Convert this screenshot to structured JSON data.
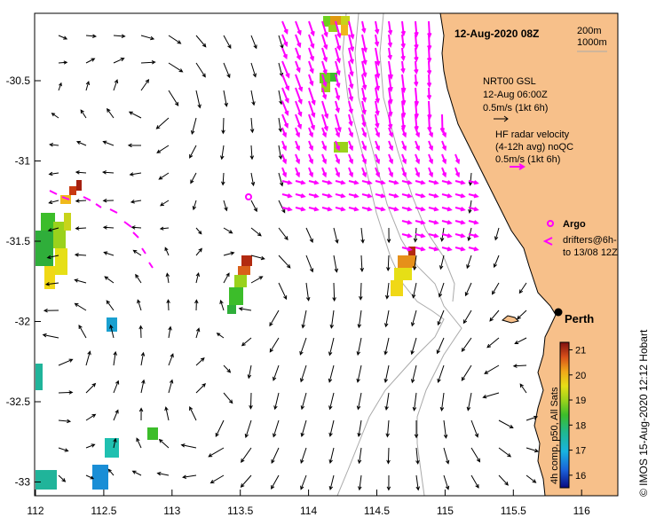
{
  "title": "12-Aug-2020 08Z",
  "depth_legend": [
    "200m",
    "1000m"
  ],
  "glider_legend": {
    "source": "NRT00 GSL",
    "time": "12-Aug 06:00Z",
    "scale": "0.5m/s (1kt 6h)"
  },
  "radar_legend": {
    "name": "HF radar velocity",
    "detail": "(4-12h avg) noQC",
    "scale": "0.5m/s (1kt 6h)"
  },
  "argo_label": "Argo",
  "drifters_label": [
    "drifters@6h-",
    "to 13/08 12Z"
  ],
  "city_label": "Perth",
  "colorbar": {
    "label": "4h comp, p50, All Sats",
    "ticks": [
      "16",
      "17",
      "18",
      "19",
      "20",
      "21"
    ],
    "range": [
      15.5,
      21.3
    ]
  },
  "credit": "IMOS 15-Aug-2020 12:12 Hobart",
  "copyright": "©",
  "x_ticks": [
    "112",
    "112.5",
    "113",
    "113.5",
    "114",
    "114.5",
    "115",
    "115.5",
    "116"
  ],
  "y_ticks": [
    "-30.5",
    "-31",
    "-31.5",
    "-32",
    "-32.5",
    "-33"
  ],
  "colors": {
    "land": "#f7c08a",
    "radar": "#ff00ff",
    "model": "#000000",
    "contour": "#aaaaaa"
  }
}
